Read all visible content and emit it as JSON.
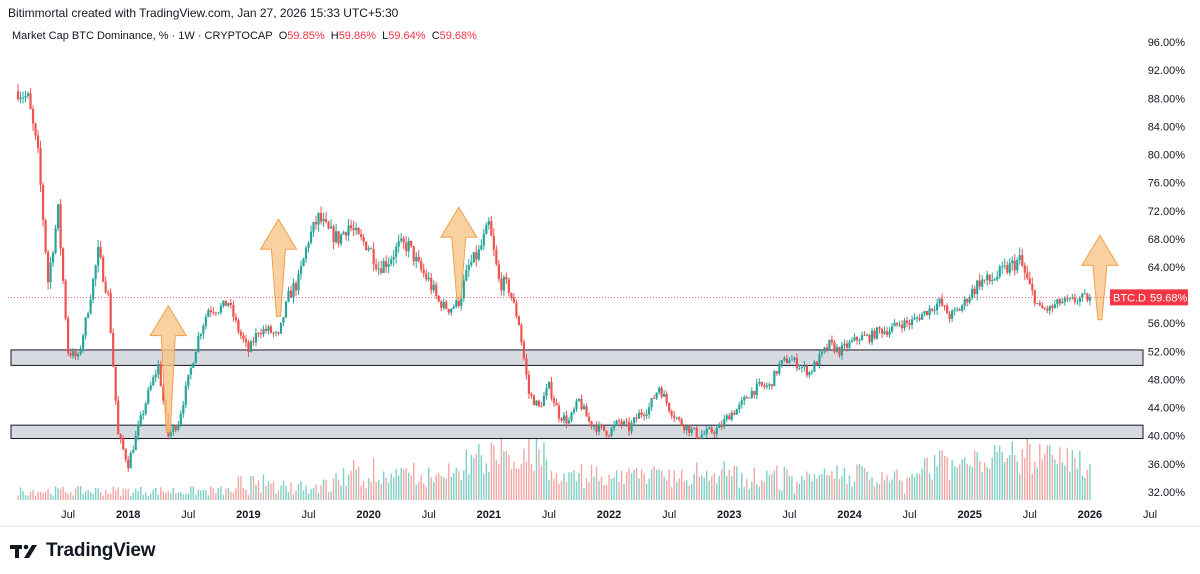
{
  "header": {
    "credit": "Bitimmortal created with TradingView.com, Jan 27, 2026 15:33 UTC+5:30"
  },
  "legend": {
    "symbol": "Market Cap BTC Dominance, % · 1W · CRYPTOCAP",
    "o_key": "O",
    "o_val": "59.85%",
    "h_key": "H",
    "h_val": "59.86%",
    "l_key": "L",
    "l_val": "59.64%",
    "c_key": "C",
    "c_val": "59.68%"
  },
  "price_tag": {
    "ticker": "BTC.D",
    "value": "59.68%"
  },
  "footer": {
    "brand": "TradingView",
    "logo_icon": "tradingview-logo-icon"
  },
  "colors": {
    "up": "#26a69a",
    "down": "#ef5350",
    "arrow": "#f7c58a",
    "zone": "#d1d4dc",
    "tag": "#f23645"
  },
  "chart_data": {
    "type": "candlestick",
    "x_start": "2017-01",
    "x_end": "2026-07",
    "ylim": [
      30,
      98
    ],
    "y_ticks": [
      32,
      36,
      40,
      44,
      48,
      52,
      56,
      60,
      64,
      68,
      72,
      76,
      80,
      84,
      88,
      92,
      96
    ],
    "y_tick_labels": [
      "32.00%",
      "36.00%",
      "40.00%",
      "44.00%",
      "48.00%",
      "52.00%",
      "56.00%",
      "60.00%",
      "64.00%",
      "68.00%",
      "72.00%",
      "76.00%",
      "80.00%",
      "84.00%",
      "88.00%",
      "92.00%",
      "96.00%"
    ],
    "x_ticks": [
      {
        "t": "2017-07",
        "label": "Jul"
      },
      {
        "t": "2018-01",
        "label": "2018"
      },
      {
        "t": "2018-07",
        "label": "Jul"
      },
      {
        "t": "2019-01",
        "label": "2019"
      },
      {
        "t": "2019-07",
        "label": "Jul"
      },
      {
        "t": "2020-01",
        "label": "2020"
      },
      {
        "t": "2020-07",
        "label": "Jul"
      },
      {
        "t": "2021-01",
        "label": "2021"
      },
      {
        "t": "2021-07",
        "label": "Jul"
      },
      {
        "t": "2022-01",
        "label": "2022"
      },
      {
        "t": "2022-07",
        "label": "Jul"
      },
      {
        "t": "2023-01",
        "label": "2023"
      },
      {
        "t": "2023-07",
        "label": "Jul"
      },
      {
        "t": "2024-01",
        "label": "2024"
      },
      {
        "t": "2024-07",
        "label": "Jul"
      },
      {
        "t": "2025-01",
        "label": "2025"
      },
      {
        "t": "2025-07",
        "label": "Jul"
      },
      {
        "t": "2026-01",
        "label": "2026"
      },
      {
        "t": "2026-07",
        "label": "Jul"
      }
    ],
    "last_close": 59.68,
    "price_path": [
      [
        "2017-02",
        89
      ],
      [
        "2017-03",
        88
      ],
      [
        "2017-04",
        80
      ],
      [
        "2017-05",
        62
      ],
      [
        "2017-06",
        72
      ],
      [
        "2017-07",
        52
      ],
      [
        "2017-08",
        51
      ],
      [
        "2017-09",
        58
      ],
      [
        "2017-10",
        66
      ],
      [
        "2017-11",
        60
      ],
      [
        "2017-12",
        40
      ],
      [
        "2018-01",
        36
      ],
      [
        "2018-02",
        41
      ],
      [
        "2018-03",
        46
      ],
      [
        "2018-04",
        50
      ],
      [
        "2018-05",
        40
      ],
      [
        "2018-06",
        42
      ],
      [
        "2018-07",
        48
      ],
      [
        "2018-08",
        54
      ],
      [
        "2018-09",
        58
      ],
      [
        "2018-10",
        58
      ],
      [
        "2018-11",
        59
      ],
      [
        "2018-12",
        55
      ],
      [
        "2019-01",
        52
      ],
      [
        "2019-02",
        55
      ],
      [
        "2019-03",
        55
      ],
      [
        "2019-04",
        54
      ],
      [
        "2019-05",
        60
      ],
      [
        "2019-06",
        62
      ],
      [
        "2019-07",
        68
      ],
      [
        "2019-08",
        71
      ],
      [
        "2019-09",
        69
      ],
      [
        "2019-10",
        68
      ],
      [
        "2019-11",
        70
      ],
      [
        "2019-12",
        68
      ],
      [
        "2020-01",
        67
      ],
      [
        "2020-02",
        64
      ],
      [
        "2020-03",
        65
      ],
      [
        "2020-04",
        67
      ],
      [
        "2020-05",
        67
      ],
      [
        "2020-06",
        64
      ],
      [
        "2020-07",
        62
      ],
      [
        "2020-08",
        59
      ],
      [
        "2020-09",
        58
      ],
      [
        "2020-10",
        59
      ],
      [
        "2020-11",
        64
      ],
      [
        "2020-12",
        66
      ],
      [
        "2021-01",
        70
      ],
      [
        "2021-02",
        62
      ],
      [
        "2021-03",
        61
      ],
      [
        "2021-04",
        56
      ],
      [
        "2021-05",
        46
      ],
      [
        "2021-06",
        44
      ],
      [
        "2021-07",
        47
      ],
      [
        "2021-08",
        43
      ],
      [
        "2021-09",
        42
      ],
      [
        "2021-10",
        45
      ],
      [
        "2021-11",
        42
      ],
      [
        "2021-12",
        41
      ],
      [
        "2022-01",
        40.5
      ],
      [
        "2022-02",
        42
      ],
      [
        "2022-03",
        41
      ],
      [
        "2022-04",
        43
      ],
      [
        "2022-05",
        44
      ],
      [
        "2022-06",
        47
      ],
      [
        "2022-07",
        44
      ],
      [
        "2022-08",
        42
      ],
      [
        "2022-09",
        41
      ],
      [
        "2022-10",
        40
      ],
      [
        "2022-11",
        40.5
      ],
      [
        "2022-12",
        41
      ],
      [
        "2023-01",
        43
      ],
      [
        "2023-02",
        44
      ],
      [
        "2023-03",
        46
      ],
      [
        "2023-04",
        47
      ],
      [
        "2023-05",
        47
      ],
      [
        "2023-06",
        50
      ],
      [
        "2023-07",
        51
      ],
      [
        "2023-08",
        50
      ],
      [
        "2023-09",
        49
      ],
      [
        "2023-10",
        51
      ],
      [
        "2023-11",
        53
      ],
      [
        "2023-12",
        52
      ],
      [
        "2024-01",
        53
      ],
      [
        "2024-02",
        54
      ],
      [
        "2024-03",
        54
      ],
      [
        "2024-04",
        55
      ],
      [
        "2024-05",
        55
      ],
      [
        "2024-06",
        56
      ],
      [
        "2024-07",
        56
      ],
      [
        "2024-08",
        57
      ],
      [
        "2024-09",
        58
      ],
      [
        "2024-10",
        59
      ],
      [
        "2024-11",
        57
      ],
      [
        "2024-12",
        58
      ],
      [
        "2025-01",
        60
      ],
      [
        "2025-02",
        62
      ],
      [
        "2025-03",
        62
      ],
      [
        "2025-04",
        63
      ],
      [
        "2025-05",
        64
      ],
      [
        "2025-06",
        65
      ],
      [
        "2025-07",
        61
      ],
      [
        "2025-08",
        58
      ],
      [
        "2025-09",
        58
      ],
      [
        "2025-10",
        59
      ],
      [
        "2025-11",
        59
      ],
      [
        "2025-12",
        59.5
      ],
      [
        "2026-01",
        59.68
      ]
    ],
    "zones": [
      {
        "low": 50.0,
        "high": 52.2
      },
      {
        "low": 39.6,
        "high": 41.5
      }
    ],
    "annotations": [
      {
        "type": "up-arrow",
        "t": "2018-05",
        "from": 40.5,
        "to": 58.5
      },
      {
        "type": "up-arrow",
        "t": "2019-04",
        "from": 57.0,
        "to": 70.8
      },
      {
        "type": "up-arrow",
        "t": "2020-10",
        "from": 59.5,
        "to": 72.5
      },
      {
        "type": "up-arrow",
        "t": "2026-02",
        "from": 56.5,
        "to": 68.5
      }
    ],
    "grid": false,
    "legend_position": "top-left"
  }
}
